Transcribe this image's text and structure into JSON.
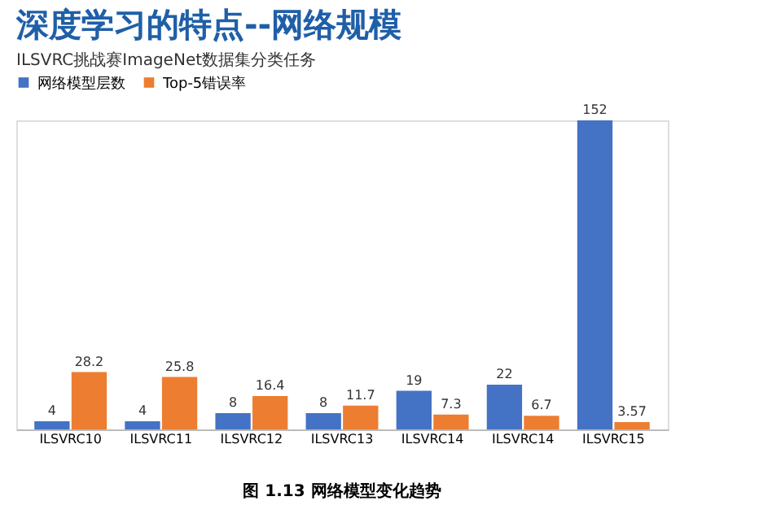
{
  "chart_data": {
    "type": "bar",
    "title": "深度学习的特点--网络规模",
    "subtitle": "ILSVRC挑战赛ImageNet数据集分类任务",
    "categories": [
      "ILSVRC10",
      "ILSVRC11",
      "ILSVRC12",
      "ILSVRC13",
      "ILSVRC14",
      "ILSVRC14",
      "ILSVRC15"
    ],
    "series": [
      {
        "name": "网络模型层数",
        "color": "#4472c4",
        "values": [
          4,
          4,
          8,
          8,
          19,
          22,
          152
        ]
      },
      {
        "name": "Top-5错误率",
        "color": "#ed7d31",
        "values": [
          28.2,
          25.8,
          16.4,
          11.7,
          7.3,
          6.7,
          3.57
        ]
      }
    ],
    "data_labels": true,
    "legend": "top",
    "annotations": [
      "图 1.13 网络模型变化趋势"
    ]
  }
}
